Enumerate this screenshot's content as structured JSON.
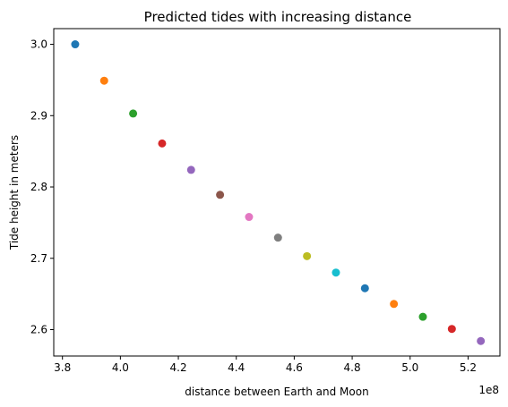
{
  "chart_data": {
    "type": "scatter",
    "title": "Predicted tides with increasing distance",
    "xlabel": "distance between Earth and Moon",
    "ylabel": "Tide height in meters",
    "x_offset_label": "1e8",
    "xlim": [
      3.77,
      5.31
    ],
    "ylim": [
      2.563,
      3.022
    ],
    "xticks": [
      3.8,
      4.0,
      4.2,
      4.4,
      4.6,
      4.8,
      5.0,
      5.2
    ],
    "xtick_labels": [
      "3.8",
      "4.0",
      "4.2",
      "4.4",
      "4.6",
      "4.8",
      "5.0",
      "5.2"
    ],
    "yticks": [
      2.6,
      2.7,
      2.8,
      2.9,
      3.0
    ],
    "ytick_labels": [
      "2.6",
      "2.7",
      "2.8",
      "2.9",
      "3.0"
    ],
    "grid": false,
    "legend": false,
    "points": [
      {
        "x": 3.844,
        "y": 3.0,
        "color": "#1f77b4"
      },
      {
        "x": 3.944,
        "y": 2.949,
        "color": "#ff7f0e"
      },
      {
        "x": 4.044,
        "y": 2.903,
        "color": "#2ca02c"
      },
      {
        "x": 4.144,
        "y": 2.861,
        "color": "#d62728"
      },
      {
        "x": 4.244,
        "y": 2.824,
        "color": "#9467bd"
      },
      {
        "x": 4.344,
        "y": 2.789,
        "color": "#8c564b"
      },
      {
        "x": 4.444,
        "y": 2.758,
        "color": "#e377c2"
      },
      {
        "x": 4.544,
        "y": 2.729,
        "color": "#7f7f7f"
      },
      {
        "x": 4.644,
        "y": 2.703,
        "color": "#bcbd22"
      },
      {
        "x": 4.744,
        "y": 2.68,
        "color": "#17becf"
      },
      {
        "x": 4.844,
        "y": 2.658,
        "color": "#1f77b4"
      },
      {
        "x": 4.944,
        "y": 2.636,
        "color": "#ff7f0e"
      },
      {
        "x": 5.044,
        "y": 2.618,
        "color": "#2ca02c"
      },
      {
        "x": 5.144,
        "y": 2.601,
        "color": "#d62728"
      },
      {
        "x": 5.244,
        "y": 2.584,
        "color": "#9467bd"
      }
    ]
  }
}
